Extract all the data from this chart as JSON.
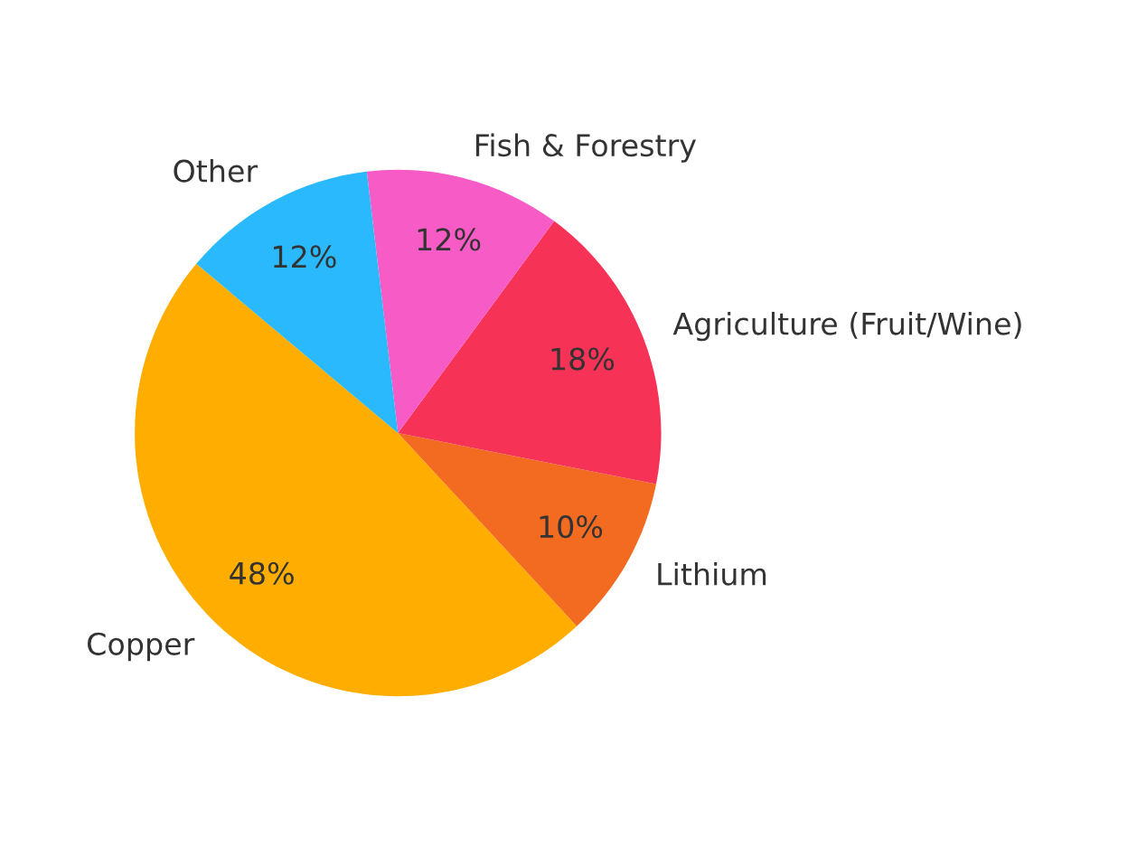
{
  "chart_data": {
    "type": "pie",
    "categories": [
      "Copper",
      "Lithium",
      "Agriculture (Fruit/Wine)",
      "Fish & Forestry",
      "Other"
    ],
    "values": [
      48,
      10,
      18,
      12,
      12
    ],
    "colors": [
      "#ffae00",
      "#f26b21",
      "#f73257",
      "#f75bc6",
      "#29b9fc"
    ],
    "value_labels": [
      "48%",
      "10%",
      "18%",
      "12%",
      "12%"
    ]
  }
}
